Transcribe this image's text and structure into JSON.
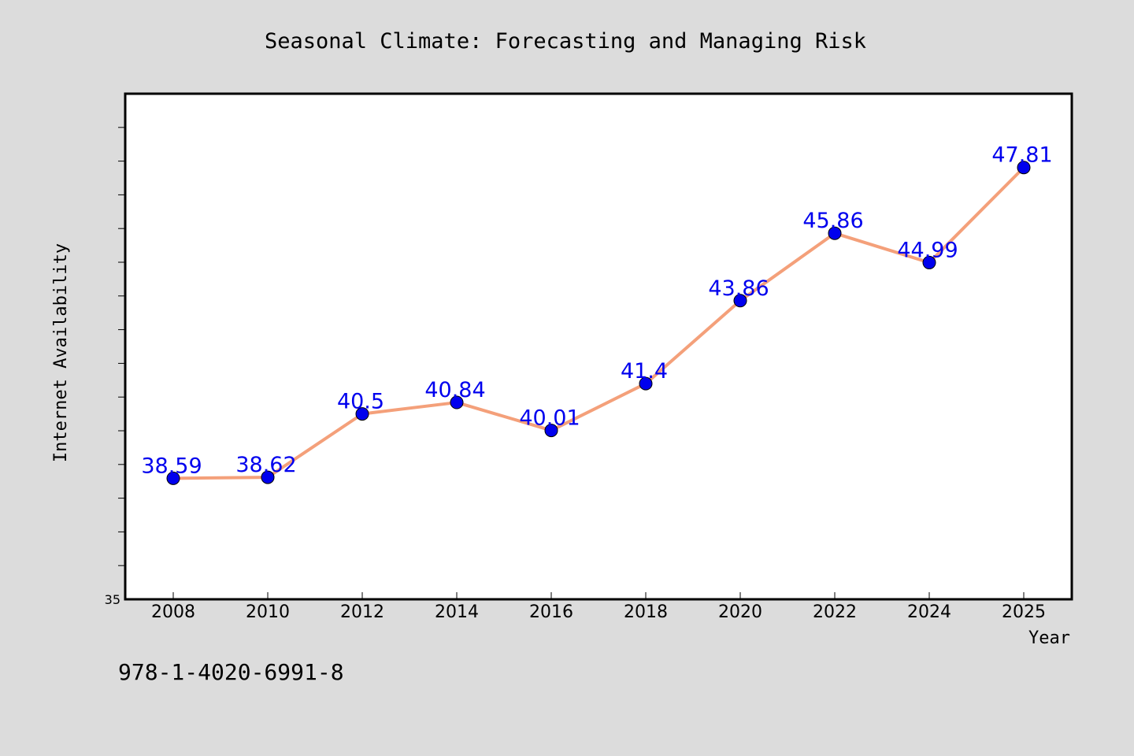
{
  "chart_data": {
    "type": "line",
    "title": "Seasonal Climate: Forecasting and Managing Risk",
    "xlabel": "Year",
    "ylabel": "Internet Availability",
    "categories": [
      "2008",
      "2010",
      "2012",
      "2014",
      "2016",
      "2018",
      "2020",
      "2022",
      "2024",
      "2025"
    ],
    "series": [
      {
        "values": [
          38.59,
          38.62,
          40.5,
          40.84,
          40.01,
          41.4,
          43.86,
          45.86,
          44.99,
          47.81
        ],
        "labels": [
          "38.59",
          "38.62",
          "40.5",
          "40.84",
          "40.01",
          "41.4",
          "43.86",
          "45.86",
          "44.99",
          "47.81"
        ],
        "line_color": "#f4a07a",
        "marker_color": "#0000ee",
        "label_color": "#0000ee"
      }
    ],
    "ylim": [
      35,
      50
    ],
    "y_tick_labels": [
      "35"
    ],
    "grid": false,
    "legend": false
  },
  "footer_text": "978-1-4020-6991-8",
  "colors": {
    "background": "#dcdcdc",
    "plot_background": "#ffffff",
    "axis": "#000000"
  }
}
